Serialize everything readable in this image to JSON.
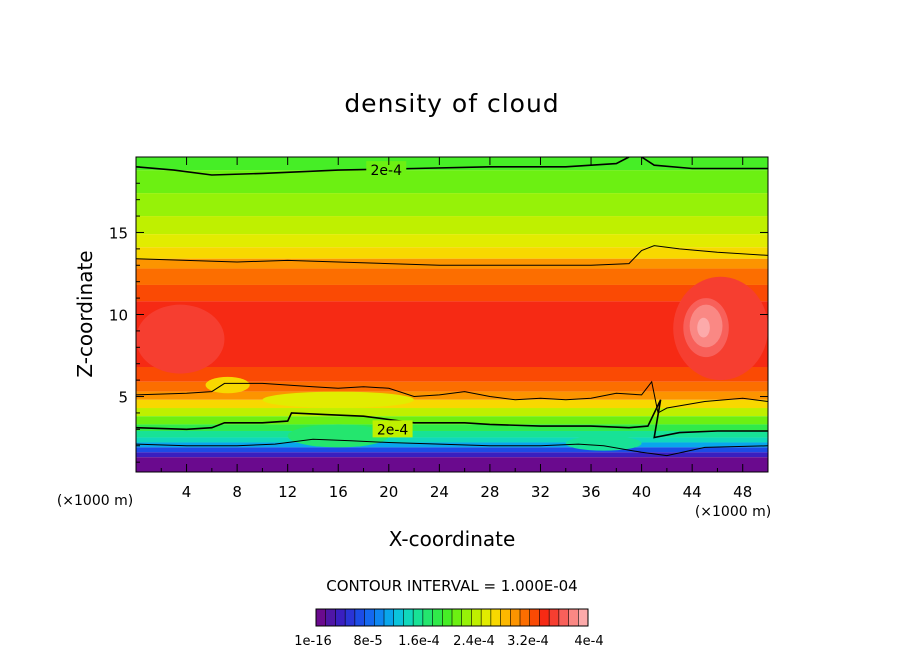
{
  "chart_data": {
    "type": "heatmap",
    "title": "density of cloud",
    "xlabel": "X-coordinate",
    "ylabel": "Z-coordinate",
    "x_unit": "(×1000 m)",
    "xlim": [
      0,
      50
    ],
    "ylim": [
      0.4,
      19.6
    ],
    "x_ticks": [
      4,
      8,
      12,
      16,
      20,
      24,
      28,
      32,
      36,
      40,
      44,
      48
    ],
    "y_ticks": [
      5,
      10,
      15
    ],
    "grid": false,
    "contour_interval_text": "CONTOUR INTERVAL = 1.000E-04",
    "contour_labels": [
      {
        "text": "2e-4",
        "x": 19.8,
        "z": 18.8
      },
      {
        "text": "2e-4",
        "x": 20.3,
        "z": 3.0
      }
    ],
    "colorbar": {
      "min": 1e-16,
      "max": 0.0004,
      "tick_labels": [
        "1e-16",
        "8e-5",
        "1.6e-4",
        "2.4e-4",
        "3.2e-4",
        "4e-4"
      ],
      "colors": [
        "#6a0a8e",
        "#4f16a6",
        "#3a1fc0",
        "#2a34d6",
        "#1c4ce6",
        "#1468f0",
        "#0e86f2",
        "#09a6ec",
        "#0bc4dc",
        "#10d8bc",
        "#18e296",
        "#24e66e",
        "#30ea4a",
        "#46ee26",
        "#6cf012",
        "#96f208",
        "#bff000",
        "#e2ec00",
        "#f8d800",
        "#fcb800",
        "#fc9400",
        "#fc6e00",
        "#fa4a04",
        "#f62a14",
        "#f63e30",
        "#f8605a",
        "#fa8884",
        "#fcaaaa"
      ]
    },
    "contour_lines": [
      {
        "level": "2e-4",
        "points": [
          [
            0,
            19.0
          ],
          [
            3,
            18.8
          ],
          [
            6,
            18.5
          ],
          [
            10,
            18.6
          ],
          [
            16,
            18.8
          ],
          [
            22,
            18.9
          ],
          [
            28,
            19.0
          ],
          [
            34,
            19.0
          ],
          [
            38,
            19.2
          ],
          [
            39,
            19.6
          ]
        ]
      },
      {
        "level": "2e-4",
        "points": [
          [
            40,
            19.6
          ],
          [
            41,
            19.1
          ],
          [
            44,
            18.9
          ],
          [
            50,
            18.9
          ]
        ]
      },
      {
        "level": "",
        "points": [
          [
            0,
            13.4
          ],
          [
            4,
            13.3
          ],
          [
            8,
            13.2
          ],
          [
            12,
            13.3
          ],
          [
            16,
            13.2
          ],
          [
            20,
            13.1
          ],
          [
            24,
            13.0
          ],
          [
            28,
            13.0
          ],
          [
            32,
            13.0
          ],
          [
            36,
            13.0
          ],
          [
            39,
            13.1
          ],
          [
            40,
            13.9
          ],
          [
            41,
            14.2
          ],
          [
            43,
            14.0
          ],
          [
            46,
            13.8
          ],
          [
            50,
            13.6
          ]
        ]
      },
      {
        "level": "",
        "points": [
          [
            0,
            5.1
          ],
          [
            4,
            5.2
          ],
          [
            6,
            5.3
          ],
          [
            7,
            5.8
          ],
          [
            10,
            5.8
          ],
          [
            14,
            5.6
          ],
          [
            16,
            5.5
          ],
          [
            18,
            5.6
          ],
          [
            20,
            5.5
          ],
          [
            22,
            5.0
          ],
          [
            24,
            5.1
          ],
          [
            26,
            5.3
          ],
          [
            28,
            5.0
          ],
          [
            30,
            4.8
          ],
          [
            32,
            4.9
          ],
          [
            34,
            4.8
          ],
          [
            36,
            4.9
          ],
          [
            38,
            5.2
          ],
          [
            40,
            5.1
          ],
          [
            40.8,
            5.9
          ],
          [
            41.3,
            4.0
          ],
          [
            42,
            4.3
          ],
          [
            45,
            4.7
          ],
          [
            48,
            4.9
          ],
          [
            50,
            4.7
          ]
        ]
      },
      {
        "level": "2e-4",
        "points": [
          [
            0,
            3.1
          ],
          [
            4,
            3.0
          ],
          [
            6,
            3.1
          ],
          [
            7,
            3.4
          ],
          [
            10,
            3.4
          ],
          [
            12,
            3.5
          ],
          [
            12.3,
            4.0
          ],
          [
            15,
            3.9
          ],
          [
            18,
            3.8
          ],
          [
            20,
            3.6
          ],
          [
            22,
            3.4
          ],
          [
            24,
            3.4
          ],
          [
            26,
            3.4
          ],
          [
            28,
            3.3
          ],
          [
            32,
            3.2
          ],
          [
            36,
            3.2
          ],
          [
            39,
            3.1
          ],
          [
            40.5,
            3.2
          ],
          [
            41.5,
            4.8
          ],
          [
            41.0,
            2.5
          ],
          [
            43,
            2.8
          ],
          [
            46,
            2.9
          ],
          [
            50,
            2.9
          ]
        ]
      },
      {
        "level": "",
        "points": [
          [
            0,
            2.1
          ],
          [
            4,
            2.0
          ],
          [
            8,
            2.0
          ],
          [
            11,
            2.1
          ],
          [
            14,
            2.4
          ],
          [
            17,
            2.3
          ],
          [
            20,
            2.2
          ],
          [
            24,
            2.1
          ],
          [
            28,
            2.0
          ],
          [
            32,
            2.0
          ],
          [
            35,
            2.1
          ],
          [
            37,
            2.0
          ],
          [
            40,
            1.6
          ],
          [
            42,
            1.4
          ],
          [
            45,
            1.9
          ],
          [
            50,
            2.0
          ]
        ]
      }
    ]
  }
}
